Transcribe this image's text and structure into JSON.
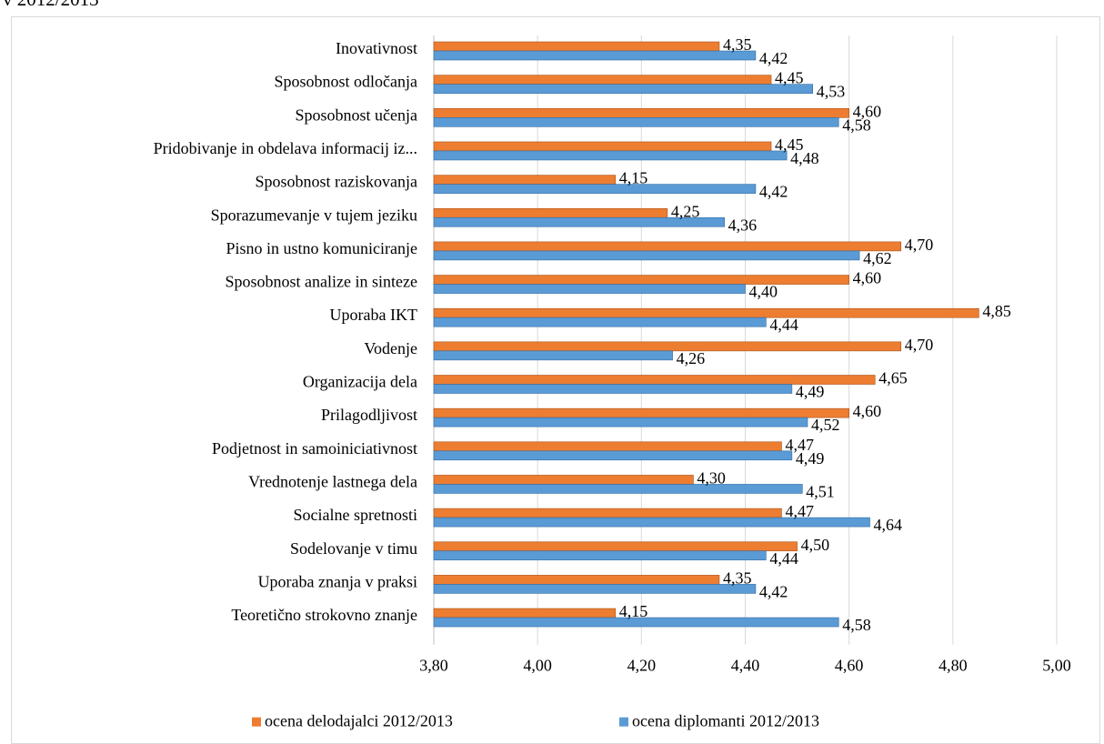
{
  "header_fragment": "v 2012/2013",
  "chart_data": {
    "type": "bar",
    "orientation": "horizontal",
    "categories": [
      "Inovativnost",
      "Sposobnost odločanja",
      "Sposobnost učenja",
      "Pridobivanje in obdelava informacij iz...",
      "Sposobnost raziskovanja",
      "Sporazumevanje v tujem jeziku",
      "Pisno in ustno komuniciranje",
      "Sposobnost analize in sinteze",
      "Uporaba IKT",
      "Vodenje",
      "Organizacija dela",
      "Prilagodljivost",
      "Podjetnost in samoiniciativnost",
      "Vrednotenje lastnega dela",
      "Socialne spretnosti",
      "Sodelovanje v timu",
      "Uporaba znanja v praksi",
      "Teoretično strokovno znanje"
    ],
    "series": [
      {
        "name": "ocena delodajalci 2012/2013",
        "color": "#ED7D31",
        "values": [
          4.35,
          4.45,
          4.6,
          4.45,
          4.15,
          4.25,
          4.7,
          4.6,
          4.85,
          4.7,
          4.65,
          4.6,
          4.47,
          4.3,
          4.47,
          4.5,
          4.35,
          4.15
        ],
        "labels": [
          "4,35",
          "4,45",
          "4,60",
          "4,45",
          "4,15",
          "4,25",
          "4,70",
          "4,60",
          "4,85",
          "4,70",
          "4,65",
          "4,60",
          "4,47",
          "4,30",
          "4,47",
          "4,50",
          "4,35",
          "4,15"
        ]
      },
      {
        "name": "ocena diplomanti 2012/2013",
        "color": "#5B9BD5",
        "values": [
          4.42,
          4.53,
          4.58,
          4.48,
          4.42,
          4.36,
          4.62,
          4.4,
          4.44,
          4.26,
          4.49,
          4.52,
          4.49,
          4.51,
          4.64,
          4.44,
          4.42,
          4.58
        ],
        "labels": [
          "4,42",
          "4,53",
          "4,58",
          "4,48",
          "4,42",
          "4,36",
          "4,62",
          "4,40",
          "4,44",
          "4,26",
          "4,49",
          "4,52",
          "4,49",
          "4,51",
          "4,64",
          "4,44",
          "4,42",
          "4,58"
        ]
      }
    ],
    "xlim": [
      3.8,
      5.0
    ],
    "xticks": [
      3.8,
      4.0,
      4.2,
      4.4,
      4.6,
      4.8,
      5.0
    ],
    "xtick_labels": [
      "3,80",
      "4,00",
      "4,20",
      "4,40",
      "4,60",
      "4,80",
      "5,00"
    ],
    "grid": "vertical",
    "legend": "bottom",
    "gridline_color": "#d9d9d9",
    "axis_color": "#bfbfbf"
  }
}
